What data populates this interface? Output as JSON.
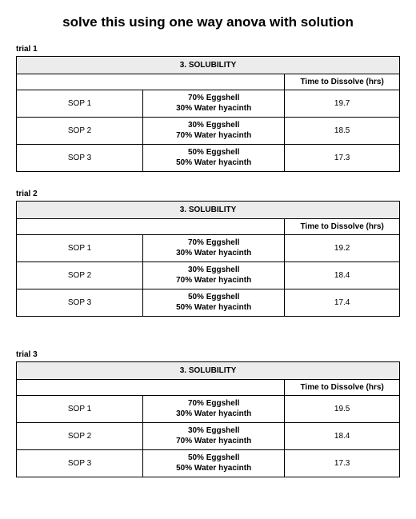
{
  "title": "solve this using one way anova with solution",
  "table_header": "3. SOLUBILITY",
  "time_col_label": "Time to Dissolve (hrs)",
  "trials": [
    {
      "label": "trial 1",
      "extra_gap": false,
      "rows": [
        {
          "sop": "SOP 1",
          "comp1": "70% Eggshell",
          "comp2": "30% Water hyacinth",
          "time": "19.7"
        },
        {
          "sop": "SOP 2",
          "comp1": "30% Eggshell",
          "comp2": "70% Water hyacinth",
          "time": "18.5"
        },
        {
          "sop": "SOP 3",
          "comp1": "50% Eggshell",
          "comp2": "50% Water hyacinth",
          "time": "17.3"
        }
      ]
    },
    {
      "label": "trial 2",
      "extra_gap": true,
      "rows": [
        {
          "sop": "SOP 1",
          "comp1": "70% Eggshell",
          "comp2": "30% Water hyacinth",
          "time": "19.2"
        },
        {
          "sop": "SOP 2",
          "comp1": "30% Eggshell",
          "comp2": "70% Water hyacinth",
          "time": "18.4"
        },
        {
          "sop": "SOP 3",
          "comp1": "50% Eggshell",
          "comp2": "50% Water hyacinth",
          "time": "17.4"
        }
      ]
    },
    {
      "label": "trial 3",
      "extra_gap": false,
      "rows": [
        {
          "sop": "SOP 1",
          "comp1": "70% Eggshell",
          "comp2": "30% Water hyacinth",
          "time": "19.5"
        },
        {
          "sop": "SOP 2",
          "comp1": "30% Eggshell",
          "comp2": "70% Water hyacinth",
          "time": "18.4"
        },
        {
          "sop": "SOP 3",
          "comp1": "50% Eggshell",
          "comp2": "50% Water hyacinth",
          "time": "17.3"
        }
      ]
    }
  ]
}
